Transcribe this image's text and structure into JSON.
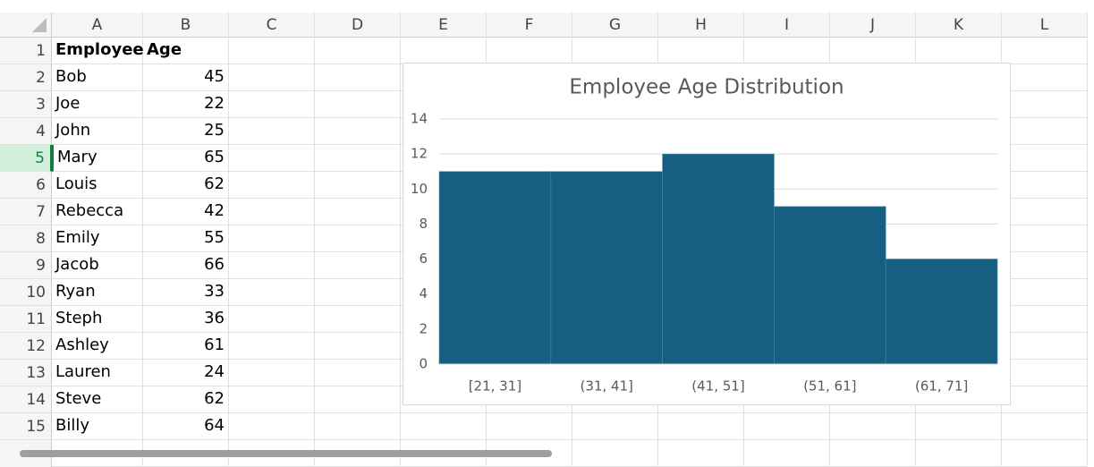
{
  "sheet": {
    "columns": [
      "A",
      "B",
      "C",
      "D",
      "E",
      "F",
      "G",
      "H",
      "I",
      "J",
      "K",
      "L"
    ],
    "row_numbers": [
      1,
      2,
      3,
      4,
      5,
      6,
      7,
      8,
      9,
      10,
      11,
      12,
      13,
      14,
      15
    ],
    "rows": [
      [
        "Employee",
        "Age"
      ],
      [
        "Bob",
        45
      ],
      [
        "Joe",
        22
      ],
      [
        "John",
        25
      ],
      [
        "Mary",
        65
      ],
      [
        "Louis",
        62
      ],
      [
        "Rebecca",
        42
      ],
      [
        "Emily",
        55
      ],
      [
        "Jacob",
        66
      ],
      [
        "Ryan",
        33
      ],
      [
        "Steph",
        36
      ],
      [
        "Ashley",
        61
      ],
      [
        "Lauren",
        24
      ],
      [
        "Steve",
        62
      ],
      [
        "Billy",
        64
      ]
    ]
  },
  "chart_data": {
    "type": "bar",
    "title": "Employee Age Distribution",
    "categories": [
      "[21, 31]",
      "(31, 41]",
      "(41, 51]",
      "(51, 61]",
      "(61, 71]"
    ],
    "values": [
      11,
      11,
      12,
      9,
      6
    ],
    "color": "#175f82",
    "ylim": [
      0,
      14
    ],
    "yticks": [
      0,
      2,
      4,
      6,
      8,
      10,
      12,
      14
    ],
    "grid": true
  }
}
